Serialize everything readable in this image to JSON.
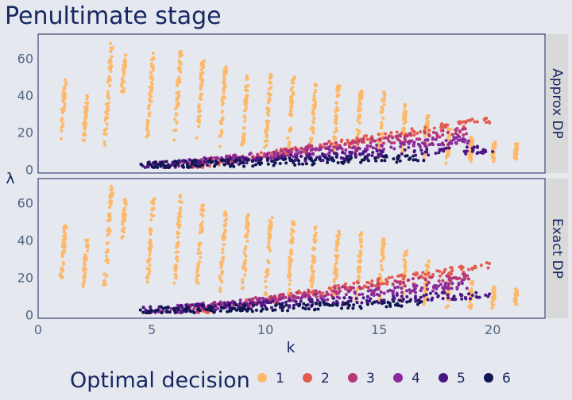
{
  "chart_data": {
    "type": "scatter",
    "title": "Penultimate stage",
    "xlabel": "k",
    "ylabel": "λ",
    "xlim": [
      0,
      22.3
    ],
    "ylim": [
      -2,
      73
    ],
    "x_ticks": [
      "0",
      "5",
      "10",
      "15",
      "20"
    ],
    "y_ticks": [
      "0",
      "20",
      "40",
      "60"
    ],
    "facets": [
      "Approx DP",
      "Exact DP"
    ],
    "legend": {
      "title": "Optimal decision",
      "placement": "bottom",
      "entries": [
        {
          "label": "1",
          "color": "#fdb96a"
        },
        {
          "label": "2",
          "color": "#e45a4e"
        },
        {
          "label": "3",
          "color": "#b73779"
        },
        {
          "label": "4",
          "color": "#8b2a9a"
        },
        {
          "label": "5",
          "color": "#4a1683"
        },
        {
          "label": "6",
          "color": "#0f1650"
        }
      ]
    },
    "series": [
      {
        "name": "1",
        "description": "Vertical streaks of points at each k; λ rises to a peak near k≈3 then declines",
        "streaks": [
          {
            "x": 1.0,
            "y_range": [
              15,
              49
            ]
          },
          {
            "x": 2.0,
            "y_range": [
              15,
              40
            ]
          },
          {
            "x": 2.9,
            "y_range": [
              10,
              69
            ]
          },
          {
            "x": 3.7,
            "y_range": [
              40,
              62
            ]
          },
          {
            "x": 4.8,
            "y_range": [
              16,
              63
            ]
          },
          {
            "x": 6.0,
            "y_range": [
              15,
              65
            ]
          },
          {
            "x": 7.0,
            "y_range": [
              16,
              59
            ]
          },
          {
            "x": 8.0,
            "y_range": [
              12,
              56
            ]
          },
          {
            "x": 9.0,
            "y_range": [
              12,
              54
            ]
          },
          {
            "x": 10.0,
            "y_range": [
              10,
              52
            ]
          },
          {
            "x": 11.0,
            "y_range": [
              10,
              50
            ]
          },
          {
            "x": 12.0,
            "y_range": [
              10,
              48
            ]
          },
          {
            "x": 13.0,
            "y_range": [
              8,
              46
            ]
          },
          {
            "x": 14.0,
            "y_range": [
              6,
              44
            ]
          },
          {
            "x": 15.0,
            "y_range": [
              5,
              42
            ]
          },
          {
            "x": 16.0,
            "y_range": [
              5,
              35
            ]
          },
          {
            "x": 17.0,
            "y_range": [
              5,
              29
            ]
          },
          {
            "x": 18.0,
            "y_range": [
              3,
              22
            ]
          },
          {
            "x": 19.0,
            "y_range": [
              3,
              18
            ]
          },
          {
            "x": 20.0,
            "y_range": [
              3,
              15
            ]
          },
          {
            "x": 21.0,
            "y_range": [
              5,
              14
            ]
          }
        ]
      },
      {
        "name": "2",
        "band": {
          "x_range": [
            7,
            20
          ],
          "y_start": 2,
          "y_end": 27
        }
      },
      {
        "name": "3",
        "band": {
          "x_range": [
            6,
            19
          ],
          "y_start": 2,
          "y_end": 21
        }
      },
      {
        "name": "4",
        "band": {
          "x_range": [
            5,
            19
          ],
          "y_start": 2,
          "y_end": 16
        }
      },
      {
        "name": "5",
        "band": {
          "x_range": [
            4.5,
            20
          ],
          "y_start": 2,
          "y_end": 11
        }
      },
      {
        "name": "6",
        "band": {
          "x_range": [
            4.5,
            17
          ],
          "y_start": 2,
          "y_end": 6
        }
      }
    ]
  }
}
